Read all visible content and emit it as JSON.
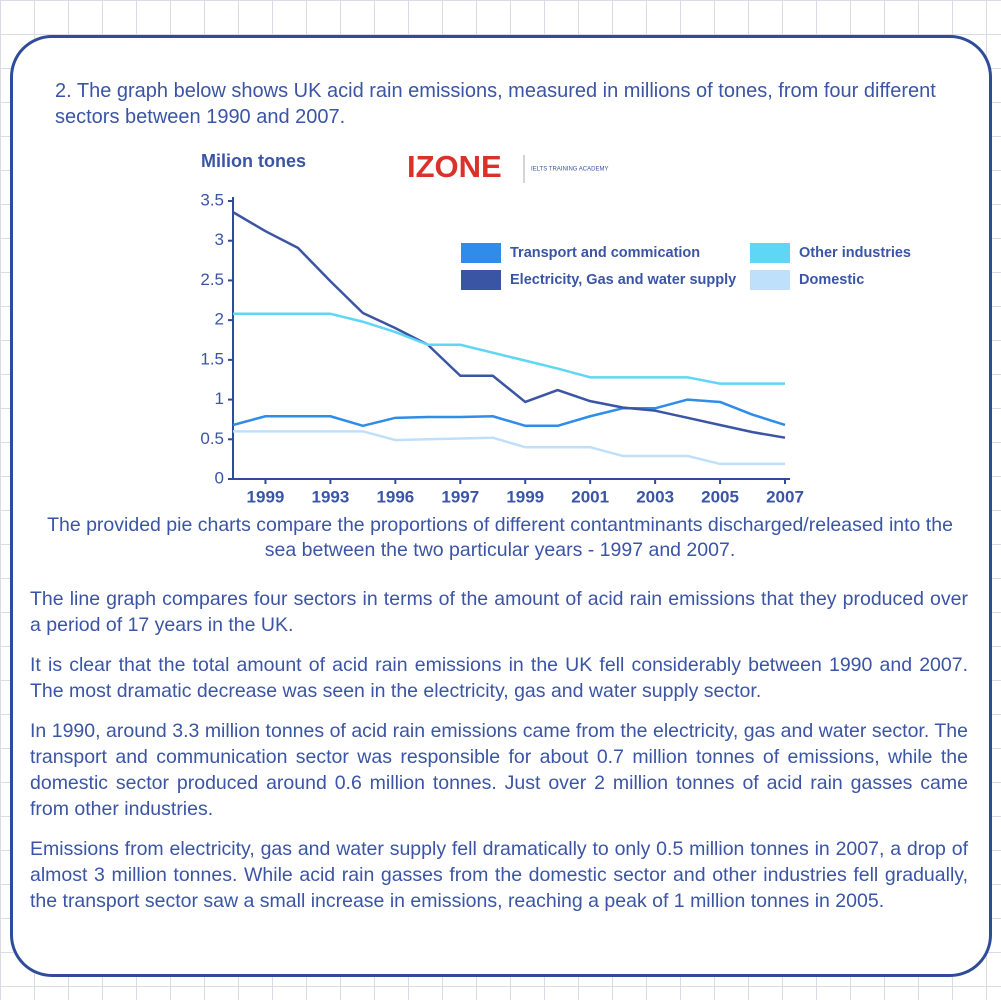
{
  "question": "2. The graph below shows UK acid rain emissions, measured in millions of tones, from four different sectors between 1990 and 2007.",
  "logo": {
    "name": "IZONE",
    "tagline": "IELTS TRAINING ACADEMY"
  },
  "chart_data": {
    "type": "line",
    "ylabel": "Milion tones",
    "categories": [
      null,
      "1999",
      null,
      "1993",
      null,
      "1996",
      null,
      "1997",
      null,
      "1999",
      null,
      "2001",
      null,
      "2003",
      null,
      "2005",
      null,
      "2007"
    ],
    "ylim": [
      0,
      3.5
    ],
    "yticks": [
      0,
      0.5,
      1,
      1.5,
      2,
      2.5,
      3,
      3.5
    ],
    "series": [
      {
        "name": "Transport and commication",
        "color": "#2f8ce8",
        "values": [
          0.68,
          0.79,
          0.79,
          0.79,
          0.67,
          0.77,
          0.78,
          0.78,
          0.79,
          0.67,
          0.67,
          0.79,
          0.89,
          0.89,
          1.0,
          0.97,
          0.81,
          0.68
        ]
      },
      {
        "name": "Electricity, Gas and water supply",
        "color": "#3a55a4",
        "values": [
          3.36,
          3.12,
          2.91,
          2.49,
          2.09,
          1.9,
          1.69,
          1.3,
          1.3,
          0.97,
          1.12,
          0.98,
          0.9,
          0.86,
          0.77,
          0.68,
          0.59,
          0.52
        ]
      },
      {
        "name": "Other industries",
        "color": "#5fd6f5",
        "values": [
          2.08,
          2.08,
          2.08,
          2.08,
          1.98,
          1.85,
          1.69,
          1.69,
          1.59,
          1.49,
          1.39,
          1.28,
          1.28,
          1.28,
          1.28,
          1.2,
          1.2,
          1.2
        ]
      },
      {
        "name": "Domestic",
        "color": "#bfe0fa",
        "values": [
          0.6,
          0.6,
          0.6,
          0.6,
          0.6,
          0.49,
          0.5,
          0.51,
          0.52,
          0.4,
          0.4,
          0.4,
          0.29,
          0.29,
          0.29,
          0.19,
          0.19,
          0.19
        ]
      }
    ]
  },
  "caption": "The provided pie charts compare the proportions of different contantminants discharged/released into the sea between the two particular years - 1997 and 2007.",
  "paragraphs": [
    "The line graph compares four sectors in terms of the amount of acid rain emissions that they produced over a period of 17 years in the UK.",
    "It is clear that the total amount of acid rain emissions in the UK fell considerably between 1990 and 2007. The most dramatic decrease was seen in the electricity, gas and water supply sector.",
    "In 1990, around 3.3 million tonnes of acid rain emissions came from the electricity, gas and water sector. The transport and communication sector was responsible for about 0.7 million tonnes of emissions, while the domestic sector produced around 0.6 million tonnes. Just over 2 million tonnes of acid rain gasses came from other industries.",
    "Emissions from electricity, gas and water supply fell dramatically to only 0.5 million tonnes in 2007, a drop of almost 3 million tonnes. While acid rain gasses from the domestic sector and other industries fell gradually, the transport sector saw a small increase in emissions, reaching a peak of 1 million tonnes in 2005."
  ]
}
